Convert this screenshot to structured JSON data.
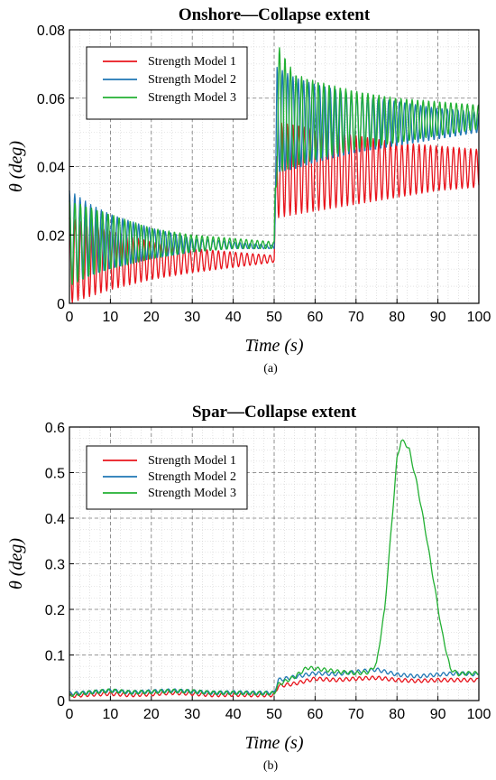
{
  "chart_data": [
    {
      "type": "line",
      "title": "Onshore—Collapse extent",
      "xlabel": "Time (s)",
      "ylabel": "θ (deg)",
      "xlim": [
        0,
        100
      ],
      "ylim": [
        0,
        0.08
      ],
      "xticks": [
        "0",
        "10",
        "20",
        "30",
        "40",
        "50",
        "60",
        "70",
        "80",
        "90",
        "100"
      ],
      "yticks": [
        "0",
        "0.02",
        "0.04",
        "0.06",
        "0.08"
      ],
      "caption": "(a)",
      "grid": true,
      "legend_position": "top-left",
      "series": [
        {
          "name": "Strength Model 1",
          "color": "#e8141c",
          "x": [
            0,
            5,
            10,
            20,
            30,
            40,
            50,
            50.7,
            55,
            60,
            70,
            80,
            90,
            100
          ],
          "y_upper": [
            0.025,
            0.023,
            0.021,
            0.018,
            0.016,
            0.015,
            0.014,
            0.053,
            0.052,
            0.051,
            0.049,
            0.047,
            0.046,
            0.045
          ],
          "y_lower": [
            0.0,
            0.002,
            0.004,
            0.007,
            0.009,
            0.0105,
            0.012,
            0.025,
            0.026,
            0.027,
            0.029,
            0.031,
            0.033,
            0.034
          ]
        },
        {
          "name": "Strength Model 2",
          "color": "#1f77b4",
          "x": [
            0,
            5,
            10,
            20,
            30,
            40,
            50,
            50.7,
            55,
            60,
            70,
            80,
            90,
            100
          ],
          "y_upper": [
            0.033,
            0.029,
            0.026,
            0.022,
            0.019,
            0.018,
            0.017,
            0.069,
            0.066,
            0.064,
            0.061,
            0.059,
            0.057,
            0.056
          ],
          "y_lower": [
            0.005,
            0.008,
            0.01,
            0.013,
            0.015,
            0.016,
            0.016,
            0.038,
            0.039,
            0.041,
            0.044,
            0.046,
            0.048,
            0.05
          ]
        },
        {
          "name": "Strength Model 3",
          "color": "#22b033",
          "x": [
            0,
            5,
            10,
            20,
            30,
            40,
            50,
            50.7,
            55,
            60,
            70,
            80,
            90,
            100
          ],
          "y_upper": [
            0.03,
            0.028,
            0.026,
            0.022,
            0.02,
            0.019,
            0.018,
            0.076,
            0.067,
            0.065,
            0.062,
            0.06,
            0.059,
            0.058
          ],
          "y_lower": [
            0.005,
            0.008,
            0.01,
            0.013,
            0.015,
            0.016,
            0.016,
            0.038,
            0.04,
            0.042,
            0.045,
            0.047,
            0.049,
            0.051
          ]
        }
      ]
    },
    {
      "type": "line",
      "title": "Spar—Collapse extent",
      "xlabel": "Time (s)",
      "ylabel": "θ (deg)",
      "xlim": [
        0,
        100
      ],
      "ylim": [
        0,
        0.6
      ],
      "xticks": [
        "0",
        "10",
        "20",
        "30",
        "40",
        "50",
        "60",
        "70",
        "80",
        "90",
        "100"
      ],
      "yticks": [
        "0",
        "0.1",
        "0.2",
        "0.3",
        "0.4",
        "0.5",
        "0.6"
      ],
      "caption": "(b)",
      "grid": true,
      "legend_position": "top-left",
      "series": [
        {
          "name": "Strength Model 1",
          "color": "#e8141c",
          "x": [
            0,
            5,
            10,
            15,
            20,
            25,
            30,
            35,
            40,
            45,
            50,
            51,
            55,
            60,
            65,
            70,
            75,
            80,
            85,
            90,
            95,
            100
          ],
          "y": [
            0.01,
            0.013,
            0.015,
            0.012,
            0.014,
            0.017,
            0.015,
            0.012,
            0.013,
            0.012,
            0.012,
            0.032,
            0.037,
            0.048,
            0.045,
            0.048,
            0.05,
            0.045,
            0.043,
            0.045,
            0.045,
            0.045
          ]
        },
        {
          "name": "Strength Model 2",
          "color": "#1f77b4",
          "x": [
            0,
            5,
            10,
            15,
            20,
            25,
            30,
            35,
            40,
            45,
            50,
            51,
            55,
            60,
            65,
            70,
            75,
            80,
            85,
            90,
            95,
            100
          ],
          "y": [
            0.015,
            0.018,
            0.022,
            0.018,
            0.02,
            0.022,
            0.02,
            0.017,
            0.018,
            0.017,
            0.017,
            0.045,
            0.052,
            0.06,
            0.058,
            0.063,
            0.068,
            0.057,
            0.053,
            0.057,
            0.06,
            0.057
          ]
        },
        {
          "name": "Strength Model 3",
          "color": "#22b033",
          "x": [
            0,
            5,
            10,
            15,
            20,
            25,
            30,
            35,
            40,
            45,
            50,
            51,
            55,
            58,
            62,
            66,
            70,
            73,
            75,
            77,
            79,
            80,
            81,
            82,
            83,
            85,
            87,
            89,
            91,
            93,
            95,
            97,
            100
          ],
          "y": [
            0.012,
            0.018,
            0.022,
            0.018,
            0.019,
            0.021,
            0.02,
            0.017,
            0.017,
            0.016,
            0.016,
            0.035,
            0.052,
            0.072,
            0.068,
            0.063,
            0.06,
            0.062,
            0.08,
            0.2,
            0.42,
            0.53,
            0.57,
            0.565,
            0.55,
            0.47,
            0.37,
            0.26,
            0.15,
            0.07,
            0.058,
            0.06,
            0.06
          ]
        }
      ]
    }
  ]
}
